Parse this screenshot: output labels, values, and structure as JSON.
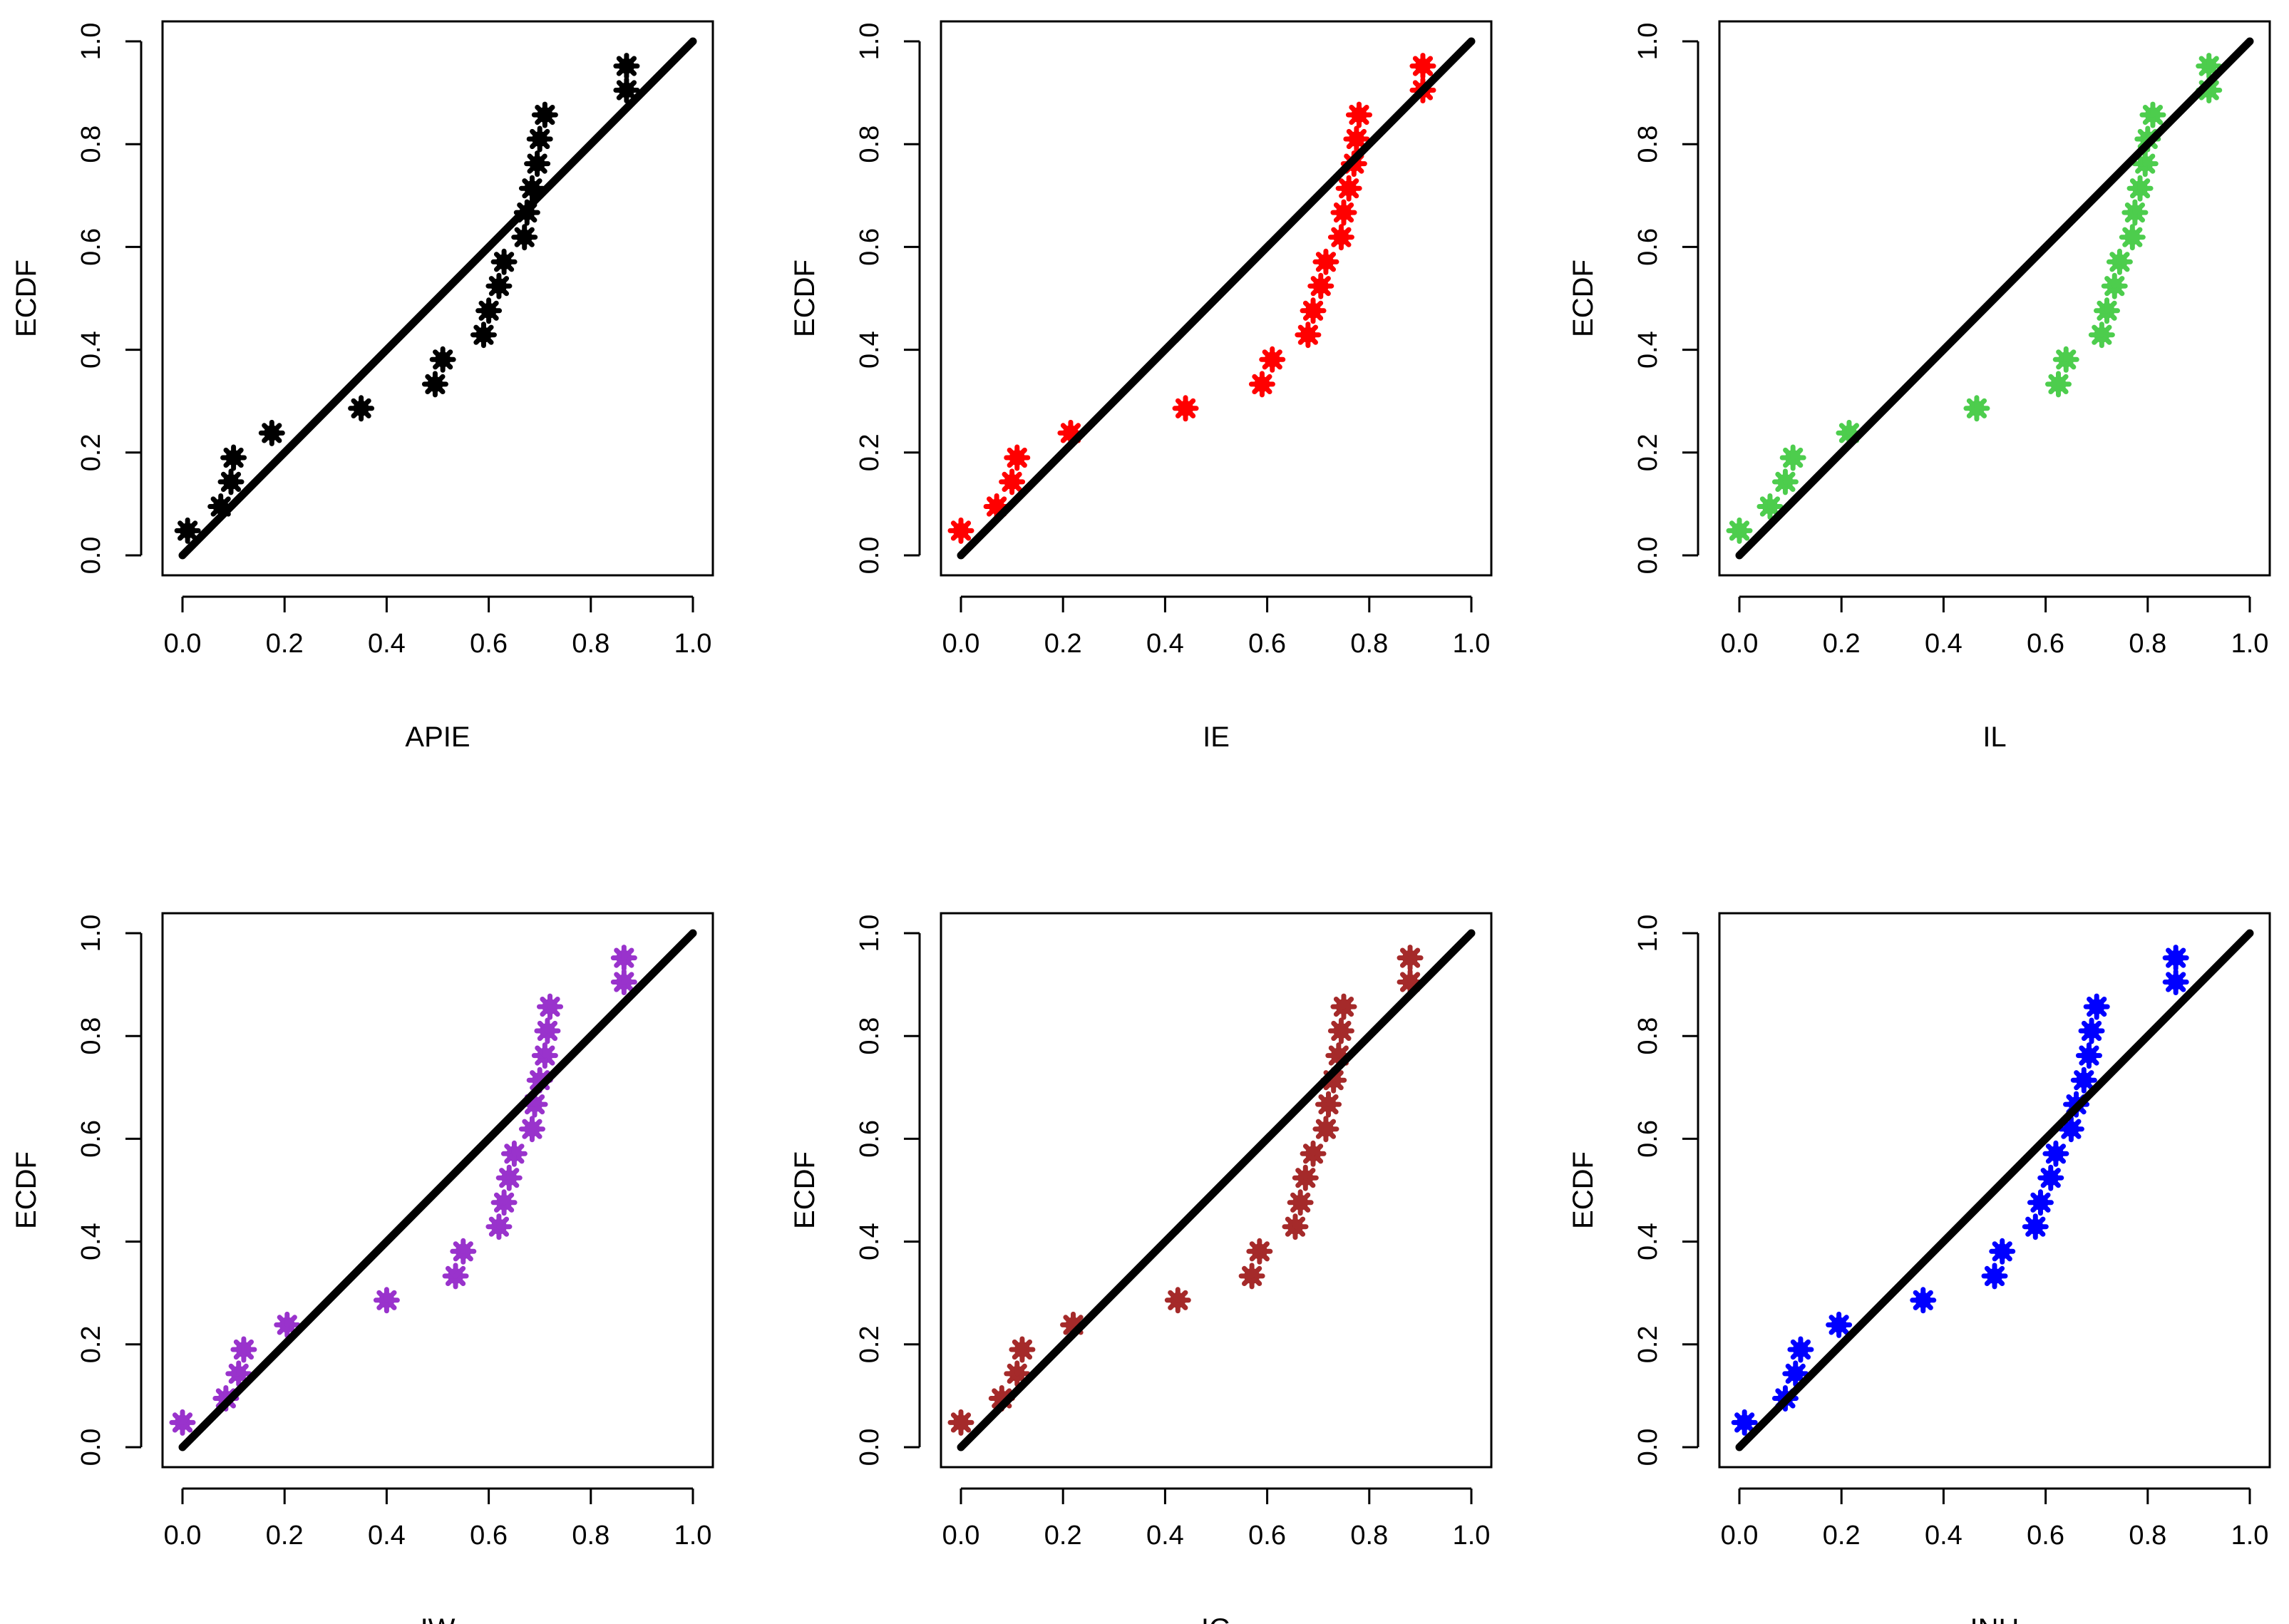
{
  "chart_data": [
    {
      "type": "scatter",
      "xlabel": "APIE",
      "ylabel": "ECDF",
      "xlim": [
        0,
        1
      ],
      "ylim": [
        0,
        1
      ],
      "xticks": [
        "0.0",
        "0.2",
        "0.4",
        "0.6",
        "0.8",
        "1.0"
      ],
      "yticks": [
        "0.0",
        "0.2",
        "0.4",
        "0.6",
        "0.8",
        "1.0"
      ],
      "point_color": "#000000",
      "reference_line": [
        [
          0,
          0
        ],
        [
          1,
          1
        ]
      ],
      "points": [
        [
          0.01,
          0.048
        ],
        [
          0.075,
          0.095
        ],
        [
          0.095,
          0.143
        ],
        [
          0.1,
          0.19
        ],
        [
          0.175,
          0.238
        ],
        [
          0.35,
          0.286
        ],
        [
          0.495,
          0.333
        ],
        [
          0.51,
          0.381
        ],
        [
          0.59,
          0.429
        ],
        [
          0.6,
          0.476
        ],
        [
          0.62,
          0.524
        ],
        [
          0.63,
          0.571
        ],
        [
          0.67,
          0.619
        ],
        [
          0.675,
          0.667
        ],
        [
          0.685,
          0.714
        ],
        [
          0.695,
          0.762
        ],
        [
          0.7,
          0.81
        ],
        [
          0.71,
          0.857
        ],
        [
          0.87,
          0.905
        ],
        [
          0.87,
          0.952
        ]
      ]
    },
    {
      "type": "scatter",
      "xlabel": "IE",
      "ylabel": "ECDF",
      "xlim": [
        0,
        1
      ],
      "ylim": [
        0,
        1
      ],
      "xticks": [
        "0.0",
        "0.2",
        "0.4",
        "0.6",
        "0.8",
        "1.0"
      ],
      "yticks": [
        "0.0",
        "0.2",
        "0.4",
        "0.6",
        "0.8",
        "1.0"
      ],
      "point_color": "#ff0000",
      "reference_line": [
        [
          0,
          0
        ],
        [
          1,
          1
        ]
      ],
      "points": [
        [
          0.0,
          0.048
        ],
        [
          0.07,
          0.095
        ],
        [
          0.1,
          0.143
        ],
        [
          0.11,
          0.19
        ],
        [
          0.215,
          0.238
        ],
        [
          0.44,
          0.286
        ],
        [
          0.59,
          0.333
        ],
        [
          0.61,
          0.381
        ],
        [
          0.68,
          0.429
        ],
        [
          0.69,
          0.476
        ],
        [
          0.705,
          0.524
        ],
        [
          0.715,
          0.571
        ],
        [
          0.745,
          0.619
        ],
        [
          0.75,
          0.667
        ],
        [
          0.76,
          0.714
        ],
        [
          0.77,
          0.762
        ],
        [
          0.775,
          0.81
        ],
        [
          0.78,
          0.857
        ],
        [
          0.905,
          0.905
        ],
        [
          0.905,
          0.952
        ]
      ]
    },
    {
      "type": "scatter",
      "xlabel": "IL",
      "ylabel": "ECDF",
      "xlim": [
        0,
        1
      ],
      "ylim": [
        0,
        1
      ],
      "xticks": [
        "0.0",
        "0.2",
        "0.4",
        "0.6",
        "0.8",
        "1.0"
      ],
      "yticks": [
        "0.0",
        "0.2",
        "0.4",
        "0.6",
        "0.8",
        "1.0"
      ],
      "point_color": "#4dcd4d",
      "reference_line": [
        [
          0,
          0
        ],
        [
          1,
          1
        ]
      ],
      "points": [
        [
          0.0,
          0.048
        ],
        [
          0.06,
          0.095
        ],
        [
          0.09,
          0.143
        ],
        [
          0.105,
          0.19
        ],
        [
          0.215,
          0.238
        ],
        [
          0.465,
          0.286
        ],
        [
          0.625,
          0.333
        ],
        [
          0.64,
          0.381
        ],
        [
          0.71,
          0.429
        ],
        [
          0.72,
          0.476
        ],
        [
          0.735,
          0.524
        ],
        [
          0.745,
          0.571
        ],
        [
          0.77,
          0.619
        ],
        [
          0.775,
          0.667
        ],
        [
          0.785,
          0.714
        ],
        [
          0.795,
          0.762
        ],
        [
          0.8,
          0.81
        ],
        [
          0.81,
          0.857
        ],
        [
          0.92,
          0.905
        ],
        [
          0.92,
          0.952
        ]
      ]
    },
    {
      "type": "scatter",
      "xlabel": "IW",
      "ylabel": "ECDF",
      "xlim": [
        0,
        1
      ],
      "ylim": [
        0,
        1
      ],
      "xticks": [
        "0.0",
        "0.2",
        "0.4",
        "0.6",
        "0.8",
        "1.0"
      ],
      "yticks": [
        "0.0",
        "0.2",
        "0.4",
        "0.6",
        "0.8",
        "1.0"
      ],
      "point_color": "#9933cc",
      "reference_line": [
        [
          0,
          0
        ],
        [
          1,
          1
        ]
      ],
      "points": [
        [
          0.0,
          0.048
        ],
        [
          0.085,
          0.095
        ],
        [
          0.11,
          0.143
        ],
        [
          0.12,
          0.19
        ],
        [
          0.205,
          0.238
        ],
        [
          0.4,
          0.286
        ],
        [
          0.535,
          0.333
        ],
        [
          0.55,
          0.381
        ],
        [
          0.62,
          0.429
        ],
        [
          0.63,
          0.476
        ],
        [
          0.64,
          0.524
        ],
        [
          0.65,
          0.571
        ],
        [
          0.685,
          0.619
        ],
        [
          0.69,
          0.667
        ],
        [
          0.7,
          0.714
        ],
        [
          0.71,
          0.762
        ],
        [
          0.715,
          0.81
        ],
        [
          0.72,
          0.857
        ],
        [
          0.865,
          0.905
        ],
        [
          0.865,
          0.952
        ]
      ]
    },
    {
      "type": "scatter",
      "xlabel": "IG",
      "ylabel": "ECDF",
      "xlim": [
        0,
        1
      ],
      "ylim": [
        0,
        1
      ],
      "xticks": [
        "0.0",
        "0.2",
        "0.4",
        "0.6",
        "0.8",
        "1.0"
      ],
      "yticks": [
        "0.0",
        "0.2",
        "0.4",
        "0.6",
        "0.8",
        "1.0"
      ],
      "point_color": "#a52a2a",
      "reference_line": [
        [
          0,
          0
        ],
        [
          1,
          1
        ]
      ],
      "points": [
        [
          0.0,
          0.048
        ],
        [
          0.08,
          0.095
        ],
        [
          0.11,
          0.143
        ],
        [
          0.12,
          0.19
        ],
        [
          0.22,
          0.238
        ],
        [
          0.425,
          0.286
        ],
        [
          0.57,
          0.333
        ],
        [
          0.585,
          0.381
        ],
        [
          0.655,
          0.429
        ],
        [
          0.665,
          0.476
        ],
        [
          0.675,
          0.524
        ],
        [
          0.69,
          0.571
        ],
        [
          0.715,
          0.619
        ],
        [
          0.72,
          0.667
        ],
        [
          0.73,
          0.714
        ],
        [
          0.74,
          0.762
        ],
        [
          0.745,
          0.81
        ],
        [
          0.75,
          0.857
        ],
        [
          0.88,
          0.905
        ],
        [
          0.88,
          0.952
        ]
      ]
    },
    {
      "type": "scatter",
      "xlabel": "INH",
      "ylabel": "ECDF",
      "xlim": [
        0,
        1
      ],
      "ylim": [
        0,
        1
      ],
      "xticks": [
        "0.0",
        "0.2",
        "0.4",
        "0.6",
        "0.8",
        "1.0"
      ],
      "yticks": [
        "0.0",
        "0.2",
        "0.4",
        "0.6",
        "0.8",
        "1.0"
      ],
      "point_color": "#0000ff",
      "reference_line": [
        [
          0,
          0
        ],
        [
          1,
          1
        ]
      ],
      "points": [
        [
          0.01,
          0.048
        ],
        [
          0.09,
          0.095
        ],
        [
          0.11,
          0.143
        ],
        [
          0.12,
          0.19
        ],
        [
          0.195,
          0.238
        ],
        [
          0.36,
          0.286
        ],
        [
          0.5,
          0.333
        ],
        [
          0.515,
          0.381
        ],
        [
          0.58,
          0.429
        ],
        [
          0.59,
          0.476
        ],
        [
          0.61,
          0.524
        ],
        [
          0.62,
          0.571
        ],
        [
          0.65,
          0.619
        ],
        [
          0.66,
          0.667
        ],
        [
          0.675,
          0.714
        ],
        [
          0.685,
          0.762
        ],
        [
          0.69,
          0.81
        ],
        [
          0.7,
          0.857
        ],
        [
          0.855,
          0.905
        ],
        [
          0.855,
          0.952
        ]
      ]
    }
  ]
}
